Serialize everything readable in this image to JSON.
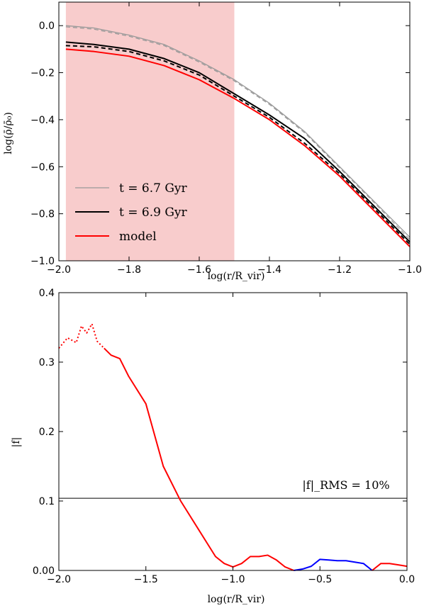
{
  "chart_data": [
    {
      "type": "line",
      "xlabel": "log(r/R_vir)",
      "ylabel": "log(ρ̄/ρ̄₀)",
      "xlim": [
        -2.0,
        -1.0
      ],
      "ylim": [
        -1.0,
        0.1
      ],
      "xticks": [
        -2.0,
        -1.8,
        -1.6,
        -1.4,
        -1.2,
        -1.0
      ],
      "xtick_labels": [
        "−2.0",
        "−1.8",
        "−1.6",
        "−1.4",
        "−1.2",
        "−1.0"
      ],
      "yticks": [
        -1.0,
        -0.8,
        -0.6,
        -0.4,
        -0.2,
        0.0
      ],
      "ytick_labels": [
        "−1.0",
        "−0.8",
        "−0.6",
        "−0.4",
        "−0.2",
        "0.0"
      ],
      "shaded_region": {
        "x": [
          -1.98,
          -1.5
        ],
        "color": "#f8cccc"
      },
      "legend": {
        "position": "lower-left"
      },
      "series": [
        {
          "name": "t = 6.7 Gyr",
          "legend_label": "t = 6.7 Gyr",
          "color": "#999999",
          "style": "solid",
          "x": [
            -1.98,
            -1.9,
            -1.8,
            -1.7,
            -1.6,
            -1.5,
            -1.4,
            -1.3,
            -1.2,
            -1.1,
            -1.0
          ],
          "y": [
            0.0,
            -0.01,
            -0.04,
            -0.08,
            -0.15,
            -0.23,
            -0.33,
            -0.45,
            -0.6,
            -0.75,
            -0.9
          ]
        },
        {
          "name": "t = 6.7 Gyr (dashed)",
          "color": "#999999",
          "style": "dashed",
          "x": [
            -1.98,
            -1.9,
            -1.8,
            -1.7,
            -1.6,
            -1.5,
            -1.4,
            -1.3,
            -1.2,
            -1.1,
            -1.0
          ],
          "y": [
            -0.005,
            -0.015,
            -0.045,
            -0.085,
            -0.155,
            -0.235,
            -0.335,
            -0.455,
            -0.605,
            -0.755,
            -0.91
          ]
        },
        {
          "name": "t = 6.9 Gyr",
          "legend_label": "t = 6.9 Gyr",
          "color": "#000000",
          "style": "solid",
          "x": [
            -1.98,
            -1.9,
            -1.8,
            -1.7,
            -1.6,
            -1.5,
            -1.4,
            -1.3,
            -1.2,
            -1.1,
            -1.0
          ],
          "y": [
            -0.07,
            -0.08,
            -0.1,
            -0.14,
            -0.2,
            -0.29,
            -0.38,
            -0.48,
            -0.62,
            -0.77,
            -0.92
          ]
        },
        {
          "name": "t = 6.9 Gyr (dashed)",
          "color": "#000000",
          "style": "dashed",
          "x": [
            -1.98,
            -1.9,
            -1.8,
            -1.7,
            -1.6,
            -1.5,
            -1.4,
            -1.3,
            -1.2,
            -1.1,
            -1.0
          ],
          "y": [
            -0.085,
            -0.09,
            -0.11,
            -0.15,
            -0.21,
            -0.3,
            -0.39,
            -0.5,
            -0.63,
            -0.78,
            -0.93
          ]
        },
        {
          "name": "model",
          "legend_label": "model",
          "color": "#ff0000",
          "style": "solid",
          "x": [
            -1.98,
            -1.9,
            -1.8,
            -1.7,
            -1.6,
            -1.5,
            -1.4,
            -1.3,
            -1.2,
            -1.1,
            -1.0
          ],
          "y": [
            -0.1,
            -0.11,
            -0.13,
            -0.17,
            -0.23,
            -0.31,
            -0.4,
            -0.51,
            -0.64,
            -0.79,
            -0.94
          ]
        }
      ]
    },
    {
      "type": "line",
      "xlabel": "log(r/R_vir)",
      "ylabel": "|f|",
      "xlim": [
        -2.0,
        0.0
      ],
      "ylim": [
        0.0,
        0.4
      ],
      "xticks": [
        -2.0,
        -1.5,
        -1.0,
        -0.5,
        0.0
      ],
      "xtick_labels": [
        "−2.0",
        "−1.5",
        "−1.0",
        "−0.5",
        "0.0"
      ],
      "yticks": [
        0.0,
        0.1,
        0.2,
        0.3,
        0.4
      ],
      "ytick_labels": [
        "0.00",
        "0.1",
        "0.2",
        "0.3",
        "0.4"
      ],
      "reference_line": {
        "y": 0.104,
        "label": "|f|_RMS = 10%",
        "color": "#000000"
      },
      "series": [
        {
          "name": "dotted",
          "color": "#ff0000",
          "style": "dotted",
          "x": [
            -2.0,
            -1.95,
            -1.9,
            -1.87,
            -1.84,
            -1.81,
            -1.78,
            -1.74
          ],
          "y": [
            0.32,
            0.335,
            0.328,
            0.352,
            0.342,
            0.355,
            0.33,
            0.32
          ]
        },
        {
          "name": "red",
          "color": "#ff0000",
          "style": "solid",
          "x": [
            -1.74,
            -1.7,
            -1.65,
            -1.6,
            -1.5,
            -1.4,
            -1.3,
            -1.2,
            -1.1,
            -1.05,
            -1.0,
            -0.95,
            -0.9,
            -0.85,
            -0.8,
            -0.75,
            -0.7,
            -0.65
          ],
          "y": [
            0.32,
            0.31,
            0.305,
            0.28,
            0.24,
            0.15,
            0.1,
            0.06,
            0.02,
            0.01,
            0.005,
            0.01,
            0.02,
            0.02,
            0.022,
            0.015,
            0.005,
            0.0
          ]
        },
        {
          "name": "blue",
          "color": "#0000ff",
          "style": "solid",
          "x": [
            -0.65,
            -0.6,
            -0.55,
            -0.5,
            -0.45,
            -0.4,
            -0.35,
            -0.3,
            -0.25,
            -0.2
          ],
          "y": [
            0.0,
            0.002,
            0.006,
            0.016,
            0.015,
            0.014,
            0.014,
            0.012,
            0.01,
            0.0
          ]
        },
        {
          "name": "red2",
          "color": "#ff0000",
          "style": "solid",
          "x": [
            -0.2,
            -0.15,
            -0.1,
            -0.05,
            0.0
          ],
          "y": [
            0.0,
            0.01,
            0.01,
            0.008,
            0.006
          ]
        }
      ]
    }
  ]
}
